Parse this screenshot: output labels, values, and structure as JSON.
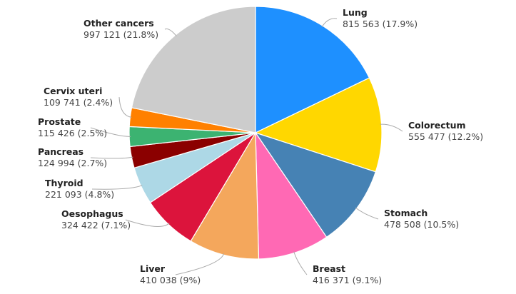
{
  "chart_data": {
    "type": "pie",
    "start": "top",
    "direction": "clockwise",
    "legend": "none",
    "slices": [
      {
        "label": "Lung",
        "value": 815563,
        "value_text": "815 563",
        "percent": "17.9%",
        "color": "#1e90ff"
      },
      {
        "label": "Colorectum",
        "value": 555477,
        "value_text": "555 477",
        "percent": "12.2%",
        "color": "#ffd700"
      },
      {
        "label": "Stomach",
        "value": 478508,
        "value_text": "478 508",
        "percent": "10.5%",
        "color": "#4682b4"
      },
      {
        "label": "Breast",
        "value": 416371,
        "value_text": "416 371",
        "percent": "9.1%",
        "color": "#ff69b4"
      },
      {
        "label": "Liver",
        "value": 410038,
        "value_text": "410 038",
        "percent": "9%",
        "color": "#f4a75c"
      },
      {
        "label": "Oesophagus",
        "value": 324422,
        "value_text": "324 422",
        "percent": "7.1%",
        "color": "#dc143c"
      },
      {
        "label": "Thyroid",
        "value": 221093,
        "value_text": "221 093",
        "percent": "4.8%",
        "color": "#add8e6"
      },
      {
        "label": "Pancreas",
        "value": 124994,
        "value_text": "124 994",
        "percent": "2.7%",
        "color": "#8b0000"
      },
      {
        "label": "Prostate",
        "value": 115426,
        "value_text": "115 426",
        "percent": "2.5%",
        "color": "#3cb371"
      },
      {
        "label": "Cervix uteri",
        "value": 109741,
        "value_text": "109 741",
        "percent": "2.4%",
        "color": "#ff8000"
      },
      {
        "label": "Other cancers",
        "value": 997121,
        "value_text": "997 121",
        "percent": "21.8%",
        "color": "#cccccc"
      }
    ]
  }
}
